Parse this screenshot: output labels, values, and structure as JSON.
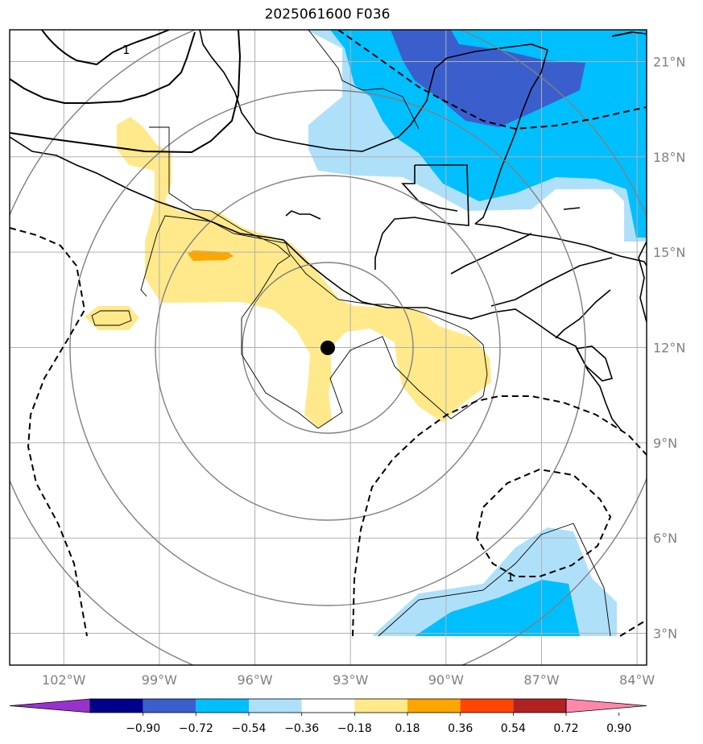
{
  "title": "2025061600 F036",
  "axes": {
    "x_ticks": [
      "102°W",
      "99°W",
      "96°W",
      "93°W",
      "90°W",
      "87°W",
      "84°W"
    ],
    "y_ticks": [
      "21°N",
      "18°N",
      "15°N",
      "12°N",
      "9°N",
      "6°N",
      "3°N"
    ],
    "xlim": [
      -103.7,
      -83.7
    ],
    "ylim": [
      2.0,
      22.0
    ],
    "grid": true
  },
  "contour_label": "1",
  "center_marker": {
    "lon": -93.7,
    "lat": 12.05
  },
  "colorbar": {
    "labels": [
      "−0.90",
      "−0.72",
      "−0.54",
      "−0.36",
      "−0.18",
      "0.18",
      "0.36",
      "0.54",
      "0.72",
      "0.90"
    ],
    "colors": [
      "#9932cc",
      "#00008b",
      "#3a5fcd",
      "#00bfff",
      "#afe0fa",
      "#ffffff",
      "#ffe98a",
      "#ffa500",
      "#ff4500",
      "#b22222",
      "#ff88aa"
    ]
  },
  "colors": {
    "yellow": "#ffe98a",
    "orange": "#ffa500",
    "light_blue": "#afe0fa",
    "cyan": "#00bfff",
    "dark_blue": "#3a5fcd",
    "grid": "#b0b0b0",
    "ring": "#808080"
  }
}
